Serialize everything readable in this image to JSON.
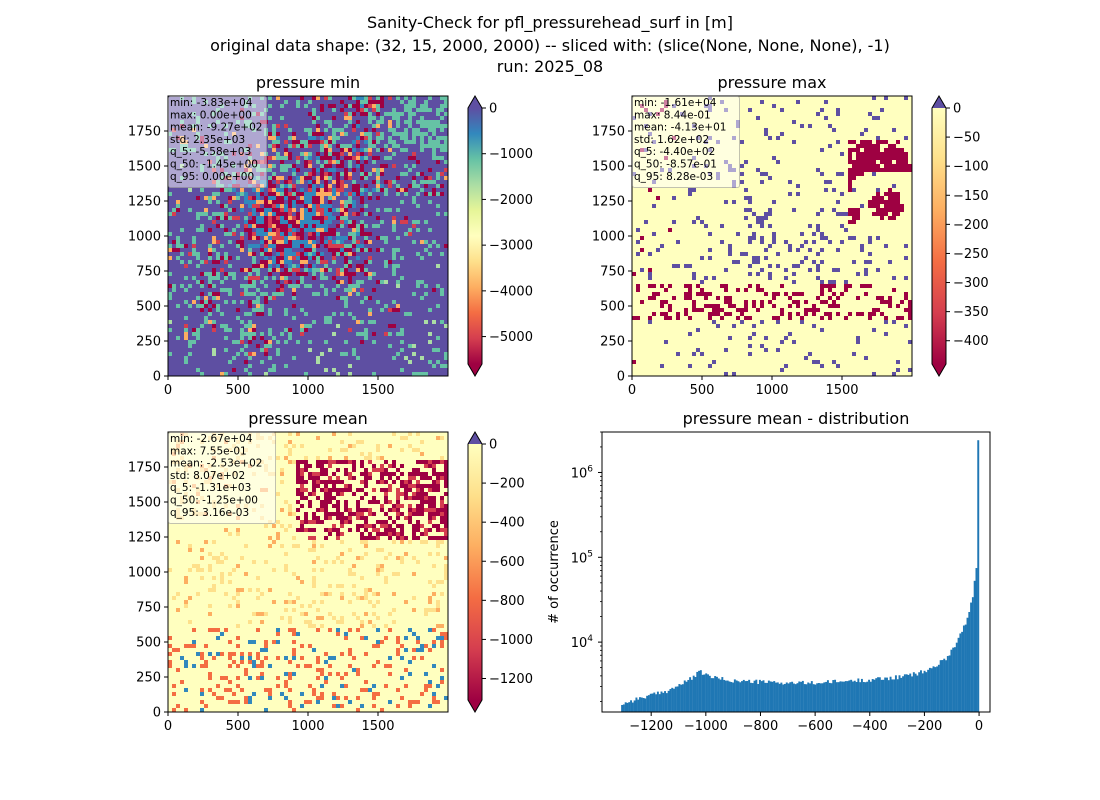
{
  "figure": {
    "title_line1": "Sanity-Check for pfl_pressurehead_surf in [m]",
    "title_line2": "original data shape: (32, 15, 2000, 2000) -- sliced with: (slice(None, None, None), -1)",
    "title_line3": "run: 2025_08"
  },
  "chart_data": [
    {
      "type": "heatmap",
      "title": "pressure min",
      "xlim": [
        0,
        2000
      ],
      "ylim": [
        0,
        2000
      ],
      "xticks": [
        "0",
        "500",
        "1000",
        "1500"
      ],
      "yticks": [
        "0",
        "250",
        "500",
        "750",
        "1000",
        "1250",
        "1500",
        "1750"
      ],
      "colormap": "Spectral",
      "colorbar": {
        "range": [
          -5600,
          0
        ],
        "ticks": [
          "0",
          "−1000",
          "−2000",
          "−3000",
          "−4000",
          "−5000"
        ],
        "tick_values": [
          0,
          -1000,
          -2000,
          -3000,
          -4000,
          -5000
        ]
      },
      "stats": [
        "min: -3.83e+04",
        "max: 0.00e+00",
        "mean: -9.27e+02",
        "std: 2.35e+03",
        "q_5: -5.58e+03",
        "q_50: -1.45e+00",
        "q_95: 0.00e+00"
      ]
    },
    {
      "type": "heatmap",
      "title": "pressure max",
      "xlim": [
        0,
        2000
      ],
      "ylim": [
        0,
        2000
      ],
      "xticks": [
        "0",
        "500",
        "1000",
        "1500"
      ],
      "yticks": [
        "0",
        "250",
        "500",
        "750",
        "1000",
        "1250",
        "1500",
        "1750"
      ],
      "colormap": "Spectral",
      "colorbar": {
        "range": [
          -440,
          0
        ],
        "ticks": [
          "0",
          "−50",
          "−100",
          "−150",
          "−200",
          "−250",
          "−300",
          "−350",
          "−400"
        ],
        "tick_values": [
          0,
          -50,
          -100,
          -150,
          -200,
          -250,
          -300,
          -350,
          -400
        ]
      },
      "stats": [
        "min: -1.61e+04",
        "max: 8.44e-01",
        "mean: -4.13e+01",
        "std: 1.62e+02",
        "q_5: -4.40e+02",
        "q_50: -8.57e-01",
        "q_95: 8.28e-03"
      ]
    },
    {
      "type": "heatmap",
      "title": "pressure mean",
      "xlim": [
        0,
        2000
      ],
      "ylim": [
        0,
        2000
      ],
      "xticks": [
        "0",
        "500",
        "1000",
        "1500"
      ],
      "yticks": [
        "0",
        "250",
        "500",
        "750",
        "1000",
        "1250",
        "1500",
        "1750"
      ],
      "colormap": "Spectral",
      "colorbar": {
        "range": [
          -1310,
          0
        ],
        "ticks": [
          "0",
          "−200",
          "−400",
          "−600",
          "−800",
          "−1000",
          "−1200"
        ],
        "tick_values": [
          0,
          -200,
          -400,
          -600,
          -800,
          -1000,
          -1200
        ]
      },
      "stats": [
        "min: -2.67e+04",
        "max: 7.55e-01",
        "mean: -2.53e+02",
        "std: 8.07e+02",
        "q_5: -1.31e+03",
        "q_50: -1.25e+00",
        "q_95: 3.16e-03"
      ]
    },
    {
      "type": "bar",
      "title": "pressure mean - distribution",
      "ylabel": "# of occurrence",
      "yscale": "log",
      "xlim": [
        -1380,
        40
      ],
      "ylim": [
        1500,
        3000000
      ],
      "xticks": [
        -1200,
        -1000,
        -800,
        -600,
        -400,
        -200,
        0
      ],
      "xtick_labels": [
        "−1200",
        "−1000",
        "−800",
        "−600",
        "−400",
        "−200",
        "0"
      ],
      "ytick_values": [
        10000,
        100000,
        1000000
      ],
      "ytick_base": [
        "10",
        "10",
        "10"
      ],
      "ytick_exp": [
        "4",
        "5",
        "6"
      ],
      "bar_color": "#1f77b4",
      "control_points": [
        [
          -1310,
          1850
        ],
        [
          -1250,
          2150
        ],
        [
          -1150,
          2600
        ],
        [
          -1080,
          3300
        ],
        [
          -1040,
          4000
        ],
        [
          -1020,
          4500
        ],
        [
          -1000,
          4100
        ],
        [
          -960,
          3750
        ],
        [
          -900,
          3500
        ],
        [
          -800,
          3400
        ],
        [
          -700,
          3300
        ],
        [
          -600,
          3300
        ],
        [
          -500,
          3450
        ],
        [
          -400,
          3600
        ],
        [
          -300,
          3850
        ],
        [
          -250,
          4100
        ],
        [
          -200,
          4500
        ],
        [
          -160,
          5200
        ],
        [
          -120,
          6500
        ],
        [
          -90,
          9000
        ],
        [
          -60,
          14000
        ],
        [
          -40,
          20000
        ],
        [
          -25,
          32000
        ],
        [
          -15,
          55000
        ],
        [
          -10,
          70000
        ],
        [
          -8,
          100000
        ],
        [
          -5,
          65000
        ],
        [
          -2,
          60000
        ],
        [
          -1,
          2400000
        ]
      ]
    }
  ]
}
